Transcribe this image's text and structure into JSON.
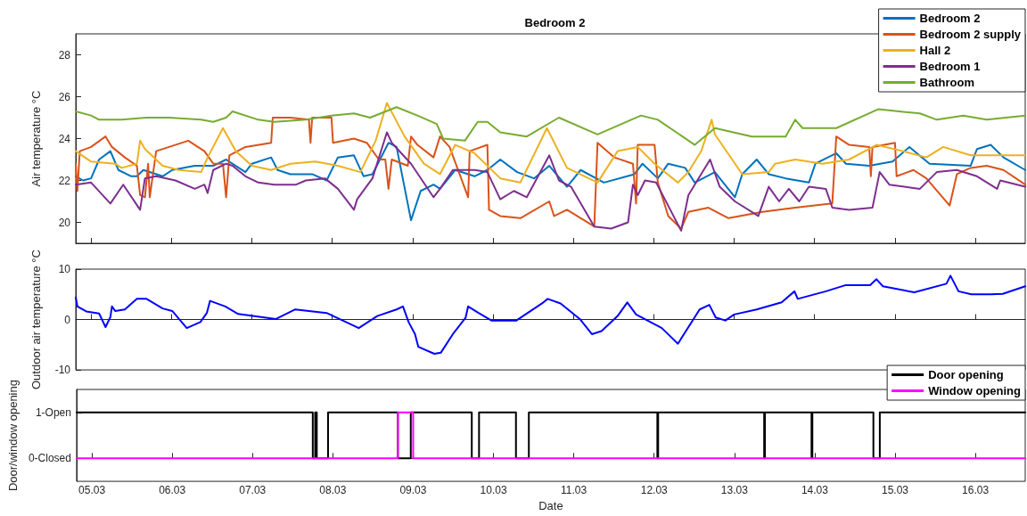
{
  "chart_data": [
    {
      "type": "line",
      "title": "Bedroom 2",
      "ylabel": "Air temperature °C",
      "xlim": [
        "--03-04T19:26",
        "--03-16T14:53"
      ],
      "xticks": [
        {
          "value": "--03-05",
          "label": null
        },
        {
          "value": "--03-06",
          "label": null
        },
        {
          "value": "--03-07",
          "label": null
        },
        {
          "value": "--03-08",
          "label": null
        },
        {
          "value": "--03-09",
          "label": null
        },
        {
          "value": "--03-10",
          "label": null
        },
        {
          "value": "--03-11",
          "label": null
        },
        {
          "value": "--03-12",
          "label": null
        },
        {
          "value": "--03-13",
          "label": null
        },
        {
          "value": "--03-14",
          "label": null
        },
        {
          "value": "--03-15",
          "label": null
        },
        {
          "value": "--03-16",
          "label": null
        }
      ],
      "ylim": [
        19,
        29
      ],
      "yticks": [
        20,
        22,
        24,
        26,
        28
      ],
      "tick_labels": "y",
      "legend": "top right",
      "marker": "none",
      "line_style": "solid",
      "series": [
        {
          "name": "Bedroom 2",
          "color": "#0072bd",
          "x": [
            "--03-04T19:26",
            "--03-04T21:36",
            "--03-05T00:00",
            "--03-05T02:24",
            "--03-05T05:46",
            "--03-05T08:10",
            "--03-05T12:00",
            "--03-05T13:41",
            "--03-05T15:36",
            "--03-05T21:22",
            "--03-06T00:14",
            "--03-06T06:58",
            "--03-06T12:29",
            "--03-06T16:19",
            "--03-06T22:05",
            "--03-07T00:00",
            "--03-07T05:46",
            "--03-07T07:41",
            "--03-07T11:31",
            "--03-07T18:00",
            "--03-07T22:19",
            "--03-08T01:41",
            "--03-08T06:29",
            "--03-08T09:22",
            "--03-08T12:00",
            "--03-08T16:48",
            "--03-08T19:12",
            "--03-08T23:31",
            "--03-09T02:24",
            "--03-09T06:14",
            "--03-09T08:10",
            "--03-09T12:43",
            "--03-09T18:29",
            "--03-09T22:19",
            "--03-10T02:10",
            "--03-10T07:12",
            "--03-10T12:14",
            "--03-10T16:48",
            "--03-10T22:05",
            "--03-11T02:10",
            "--03-11T09:07",
            "--03-11T18:14",
            "--03-11T20:38",
            "--03-12T01:12",
            "--03-12T04:19",
            "--03-12T09:22",
            "--03-12T12:14",
            "--03-12T18:14",
            "--03-13T00:14",
            "--03-13T02:24",
            "--03-13T06:43",
            "--03-13T10:19",
            "--03-13T15:22",
            "--03-13T22:19",
            "--03-14T00:14",
            "--03-14T06:29",
            "--03-14T09:22",
            "--03-14T16:19",
            "--03-14T23:17",
            "--03-15T04:19",
            "--03-15T10:19",
            "--03-15T22:34",
            "--03-16T00:29",
            "--03-16T04:34",
            "--03-16T08:24",
            "--03-16T14:53"
          ],
          "values": [
            22.2,
            22.0,
            22.1,
            23.0,
            23.4,
            22.5,
            22.2,
            22.2,
            22.5,
            22.2,
            22.5,
            22.7,
            22.7,
            23.0,
            22.4,
            22.8,
            23.1,
            22.5,
            22.3,
            22.3,
            22.0,
            23.1,
            23.2,
            22.2,
            22.3,
            23.8,
            23.6,
            20.1,
            21.5,
            21.8,
            21.6,
            22.5,
            22.2,
            22.5,
            23.0,
            22.4,
            22.1,
            22.7,
            21.7,
            22.5,
            21.9,
            22.3,
            22.8,
            22.1,
            22.8,
            22.6,
            21.9,
            22.4,
            21.2,
            22.3,
            23.0,
            22.3,
            22.1,
            21.9,
            22.8,
            23.3,
            22.8,
            22.7,
            22.9,
            23.6,
            22.8,
            22.7,
            23.5,
            23.7,
            23.1,
            22.5
          ]
        },
        {
          "name": "Bedroom 2 supply",
          "color": "#d95319",
          "x": [
            "--03-04T19:26",
            "--03-04T19:55",
            "--03-04T20:38",
            "--03-05T00:00",
            "--03-05T04:19",
            "--03-05T06:14",
            "--03-05T10:05",
            "--03-05T13:41",
            "--03-05T14:38",
            "--03-05T16:05",
            "--03-05T17:02",
            "--03-05T17:31",
            "--03-05T19:26",
            "--03-05T23:17",
            "--03-06T05:02",
            "--03-06T09:50",
            "--03-06T12:29",
            "--03-06T15:22",
            "--03-06T16:19",
            "--03-06T17:17",
            "--03-06T22:05",
            "--03-07T05:46",
            "--03-07T06:14",
            "--03-07T11:31",
            "--03-07T17:02",
            "--03-07T17:31",
            "--03-07T18:00",
            "--03-07T23:46",
            "--03-08T00:14",
            "--03-08T06:29",
            "--03-08T10:19",
            "--03-08T13:55",
            "--03-08T15:50",
            "--03-08T16:48",
            "--03-08T17:46",
            "--03-08T22:34",
            "--03-08T23:31",
            "--03-09T01:26",
            "--03-09T06:14",
            "--03-09T08:10",
            "--03-09T11:02",
            "--03-09T16:34",
            "--03-09T17:02",
            "--03-09T22:19",
            "--03-09T22:48",
            "--03-10T02:10",
            "--03-10T08:10",
            "--03-10T16:48",
            "--03-10T18:14",
            "--03-10T22:05",
            "--03-11T06:14",
            "--03-11T07:12",
            "--03-11T12:14",
            "--03-11T17:46",
            "--03-11T18:43",
            "--03-11T19:12",
            "--03-12T00:14",
            "--03-12T01:12",
            "--03-12T04:19",
            "--03-12T08:10",
            "--03-12T10:19",
            "--03-12T16:19",
            "--03-12T22:19",
            "--03-13T08:24",
            "--03-13T18:14",
            "--03-14T05:17",
            "--03-14T06:29",
            "--03-14T10:19",
            "--03-14T16:19",
            "--03-14T16:48",
            "--03-14T17:17",
            "--03-15T00:00",
            "--03-15T00:29",
            "--03-15T05:31",
            "--03-15T09:22",
            "--03-15T16:19",
            "--03-15T18:29",
            "--03-15T22:34",
            "--03-16T03:22",
            "--03-16T08:24",
            "--03-16T14:53"
          ],
          "values": [
            22.8,
            21.5,
            23.4,
            23.6,
            24.1,
            23.6,
            23.1,
            22.7,
            21.3,
            21.2,
            22.8,
            21.2,
            23.4,
            23.6,
            23.9,
            23.4,
            22.8,
            22.8,
            21.2,
            23.2,
            23.6,
            23.8,
            25.0,
            25.0,
            24.9,
            23.8,
            25.0,
            25.0,
            23.8,
            24.0,
            23.8,
            23.0,
            23.0,
            21.6,
            23.0,
            22.7,
            24.1,
            23.7,
            23.1,
            24.1,
            23.6,
            21.2,
            23.4,
            23.7,
            20.6,
            20.3,
            20.2,
            21.0,
            20.3,
            20.6,
            19.8,
            23.8,
            23.1,
            22.8,
            20.9,
            23.7,
            23.7,
            21.9,
            20.3,
            19.7,
            20.5,
            20.7,
            20.2,
            20.5,
            20.7,
            20.9,
            24.1,
            23.7,
            23.6,
            22.2,
            23.6,
            23.8,
            22.2,
            22.5,
            22.1,
            20.8,
            22.3,
            22.6,
            22.7,
            22.5,
            21.8
          ]
        },
        {
          "name": "Hall 2",
          "color": "#edb120",
          "x": [
            "--03-04T19:26",
            "--03-05T00:00",
            "--03-05T07:12",
            "--03-05T09:07",
            "--03-05T13:41",
            "--03-05T14:38",
            "--03-05T16:05",
            "--03-05T21:22",
            "--03-06T02:10",
            "--03-06T08:53",
            "--03-06T10:48",
            "--03-06T15:22",
            "--03-06T19:12",
            "--03-07T00:00",
            "--03-07T05:46",
            "--03-07T11:31",
            "--03-07T18:58",
            "--03-08T01:41",
            "--03-08T08:24",
            "--03-08T12:58",
            "--03-08T16:19",
            "--03-08T21:36",
            "--03-09T03:22",
            "--03-09T08:10",
            "--03-09T12:43",
            "--03-09T18:29",
            "--03-10T02:10",
            "--03-10T08:10",
            "--03-10T16:05",
            "--03-10T22:05",
            "--03-11T07:12",
            "--03-11T13:12",
            "--03-11T19:12",
            "--03-12T00:14",
            "--03-12T07:12",
            "--03-12T10:19",
            "--03-12T14:10",
            "--03-12T17:17",
            "--03-12T18:14",
            "--03-13T02:24",
            "--03-13T10:19",
            "--03-13T12:14",
            "--03-13T18:14",
            "--03-14T02:24",
            "--03-14T10:19",
            "--03-14T18:29",
            "--03-15T02:24",
            "--03-15T09:22",
            "--03-15T14:24",
            "--03-15T22:34",
            "--03-16T08:24",
            "--03-16T14:53"
          ],
          "values": [
            23.4,
            22.9,
            22.8,
            22.6,
            22.8,
            23.9,
            23.5,
            22.7,
            22.5,
            22.4,
            23.1,
            24.5,
            23.4,
            22.7,
            22.5,
            22.8,
            22.9,
            22.7,
            22.4,
            23.9,
            25.7,
            24.1,
            22.8,
            22.3,
            23.7,
            23.3,
            22.1,
            21.9,
            24.5,
            22.6,
            21.9,
            23.4,
            23.6,
            22.8,
            21.9,
            22.4,
            23.4,
            24.9,
            24.2,
            22.3,
            22.4,
            22.8,
            23.0,
            22.8,
            23.0,
            23.7,
            23.4,
            23.1,
            23.6,
            23.2,
            23.2,
            23.2
          ]
        },
        {
          "name": "Bedroom 1",
          "color": "#7e2f8e",
          "x": [
            "--03-04T19:26",
            "--03-05T00:00",
            "--03-05T05:46",
            "--03-05T09:36",
            "--03-05T14:38",
            "--03-05T16:05",
            "--03-05T19:26",
            "--03-06T01:12",
            "--03-06T06:58",
            "--03-06T09:50",
            "--03-06T10:48",
            "--03-06T12:29",
            "--03-06T16:19",
            "--03-06T18:14",
            "--03-06T22:05",
            "--03-07T01:55",
            "--03-07T06:43",
            "--03-07T13:12",
            "--03-07T16:05",
            "--03-07T21:50",
            "--03-08T01:41",
            "--03-08T06:29",
            "--03-08T07:26",
            "--03-08T12:00",
            "--03-08T16:19",
            "--03-08T17:46",
            "--03-08T23:31",
            "--03-09T06:14",
            "--03-09T08:10",
            "--03-09T12:00",
            "--03-09T18:29",
            "--03-09T22:19",
            "--03-10T02:10",
            "--03-10T06:14",
            "--03-10T10:05",
            "--03-10T16:48",
            "--03-10T19:41",
            "--03-10T23:17",
            "--03-11T06:14",
            "--03-11T11:17",
            "--03-11T16:19",
            "--03-11T17:46",
            "--03-11T19:12",
            "--03-11T21:22",
            "--03-12T00:43",
            "--03-12T08:10",
            "--03-12T10:19",
            "--03-12T16:48",
            "--03-12T19:41",
            "--03-13T00:14",
            "--03-13T07:12",
            "--03-13T10:19",
            "--03-13T13:26",
            "--03-13T16:19",
            "--03-13T19:26",
            "--03-13T22:19",
            "--03-14T03:22",
            "--03-14T05:17",
            "--03-14T10:19",
            "--03-14T17:17",
            "--03-14T19:26",
            "--03-14T22:19",
            "--03-15T07:26",
            "--03-15T12:29",
            "--03-15T18:29",
            "--03-16T00:29",
            "--03-16T06:29",
            "--03-16T07:26",
            "--03-16T14:53"
          ],
          "values": [
            21.8,
            21.9,
            20.9,
            21.8,
            20.6,
            22.1,
            22.2,
            22.0,
            21.6,
            21.8,
            21.4,
            22.5,
            22.8,
            22.7,
            22.2,
            21.9,
            21.8,
            21.8,
            22.0,
            22.1,
            21.6,
            20.6,
            21.1,
            22.1,
            24.3,
            23.8,
            22.8,
            21.2,
            21.6,
            22.5,
            22.5,
            22.4,
            21.1,
            21.5,
            21.2,
            23.2,
            22.0,
            21.7,
            19.8,
            19.7,
            20.0,
            21.8,
            21.3,
            22.0,
            21.9,
            19.6,
            21.3,
            23.0,
            21.7,
            21.0,
            20.3,
            21.7,
            21.0,
            21.6,
            21.0,
            21.7,
            21.6,
            20.7,
            20.6,
            20.7,
            22.4,
            21.8,
            21.6,
            22.4,
            22.5,
            22.2,
            21.6,
            22.0,
            21.7
          ]
        },
        {
          "name": "Bathroom",
          "color": "#77ac30",
          "x": [
            "--03-04T19:26",
            "--03-05T00:00",
            "--03-05T02:24",
            "--03-05T09:07",
            "--03-05T16:34",
            "--03-05T23:17",
            "--03-06T08:53",
            "--03-06T12:29",
            "--03-06T16:19",
            "--03-06T18:14",
            "--03-07T01:55",
            "--03-07T06:43",
            "--03-07T16:05",
            "--03-07T23:46",
            "--03-08T06:29",
            "--03-08T11:17",
            "--03-08T19:12",
            "--03-09T01:26",
            "--03-09T07:12",
            "--03-09T09:07",
            "--03-09T15:36",
            "--03-09T19:26",
            "--03-09T22:19",
            "--03-10T02:10",
            "--03-10T10:05",
            "--03-10T19:41",
            "--03-11T07:12",
            "--03-11T20:10",
            "--03-12T01:12",
            "--03-12T12:14",
            "--03-12T18:14",
            "--03-13T05:17",
            "--03-13T15:22",
            "--03-13T18:14",
            "--03-13T20:24",
            "--03-14T06:29",
            "--03-14T18:58",
            "--03-15T07:26",
            "--03-15T12:29",
            "--03-15T20:24",
            "--03-16T03:22",
            "--03-16T14:53"
          ],
          "values": [
            25.3,
            25.1,
            24.9,
            24.9,
            25.0,
            25.0,
            24.9,
            24.8,
            25.0,
            25.3,
            24.9,
            24.8,
            24.9,
            25.1,
            25.2,
            25.0,
            25.5,
            25.1,
            24.7,
            24.0,
            23.9,
            24.8,
            24.8,
            24.3,
            24.1,
            25.0,
            24.2,
            25.1,
            24.9,
            23.7,
            24.5,
            24.1,
            24.1,
            24.9,
            24.5,
            24.5,
            25.4,
            25.2,
            24.9,
            25.1,
            24.9,
            25.1
          ]
        }
      ]
    },
    {
      "type": "line",
      "ylabel": "Outdoor air temperature °C",
      "xlim": [
        "--03-04T19:26",
        "--03-16T14:53"
      ],
      "xticks": [
        {
          "value": "--03-05",
          "label": null
        },
        {
          "value": "--03-06",
          "label": null
        },
        {
          "value": "--03-07",
          "label": null
        },
        {
          "value": "--03-08",
          "label": null
        },
        {
          "value": "--03-09",
          "label": null
        },
        {
          "value": "--03-10",
          "label": null
        },
        {
          "value": "--03-11",
          "label": null
        },
        {
          "value": "--03-12",
          "label": null
        },
        {
          "value": "--03-13",
          "label": null
        },
        {
          "value": "--03-14",
          "label": null
        },
        {
          "value": "--03-15",
          "label": null
        },
        {
          "value": "--03-16",
          "label": null
        }
      ],
      "ylim": [
        -10,
        10
      ],
      "yticks": [
        -10,
        0,
        10
      ],
      "tick_labels": "y",
      "marker": "none",
      "line_style": "solid",
      "series": [
        {
          "color": "#0000ff",
          "x": [
            "--03-04T19:26",
            "--03-04T19:55",
            "--03-04T22:34",
            "--03-05T02:24",
            "--03-05T04:19",
            "--03-05T05:46",
            "--03-05T06:14",
            "--03-05T07:12",
            "--03-05T10:05",
            "--03-05T13:41",
            "--03-05T16:34",
            "--03-05T21:22",
            "--03-06T00:14",
            "--03-06T04:34",
            "--03-06T08:38",
            "--03-06T10:34",
            "--03-06T11:31",
            "--03-06T16:05",
            "--03-06T19:55",
            "--03-07T07:12",
            "--03-07T12:58",
            "--03-07T22:19",
            "--03-08T07:55",
            "--03-08T13:26",
            "--03-08T19:12",
            "--03-08T21:07",
            "--03-08T22:48",
            "--03-09T00:43",
            "--03-09T01:41",
            "--03-09T06:29",
            "--03-09T08:24",
            "--03-09T12:00",
            "--03-09T15:50",
            "--03-09T16:34",
            "--03-09T19:41",
            "--03-09T23:31",
            "--03-10T06:58",
            "--03-10T14:38",
            "--03-10T16:19",
            "--03-10T20:10",
            "--03-11T01:55",
            "--03-11T05:31",
            "--03-11T08:24",
            "--03-11T13:12",
            "--03-11T16:05",
            "--03-11T18:43",
            "--03-12T02:24",
            "--03-12T07:12",
            "--03-12T13:41",
            "--03-12T16:34",
            "--03-12T18:29",
            "--03-12T21:22",
            "--03-13T00:00",
            "--03-13T06:43",
            "--03-13T14:10",
            "--03-13T18:00",
            "--03-13T18:58",
            "--03-14T03:22",
            "--03-14T09:07",
            "--03-14T16:34",
            "--03-14T18:29",
            "--03-14T20:24",
            "--03-15T05:46",
            "--03-15T15:22",
            "--03-15T16:34",
            "--03-15T18:58",
            "--03-15T22:48",
            "--03-16T04:34",
            "--03-16T08:10",
            "--03-16T14:53"
          ],
          "values": [
            4.4,
            2.6,
            1.6,
            1.2,
            -1.5,
            0.5,
            2.6,
            1.7,
            2.0,
            4.1,
            4.1,
            2.2,
            1.7,
            -1.7,
            -0.5,
            1.3,
            3.7,
            2.6,
            1.1,
            0.1,
            2.0,
            1.3,
            -1.7,
            0.7,
            2.0,
            2.6,
            -0.5,
            -2.9,
            -5.4,
            -6.8,
            -6.6,
            -2.9,
            0.4,
            2.6,
            1.3,
            -0.2,
            -0.2,
            3.2,
            4.1,
            3.2,
            0.1,
            -2.9,
            -2.3,
            0.7,
            3.4,
            1.0,
            -1.7,
            -4.8,
            2.0,
            2.9,
            0.4,
            -0.2,
            1.0,
            2.0,
            3.4,
            5.6,
            4.1,
            5.6,
            6.8,
            6.8,
            8.0,
            6.6,
            5.4,
            7.1,
            8.7,
            5.6,
            5.0,
            5.0,
            5.1,
            6.6
          ]
        }
      ]
    },
    {
      "type": "step",
      "ylabel": "Door/window opening",
      "xlabel": "Date",
      "xlim": [
        "--03-04T19:26",
        "--03-16T14:53"
      ],
      "xticks": [
        {
          "value": "--03-05",
          "label": "05.03"
        },
        {
          "value": "--03-06",
          "label": "06.03"
        },
        {
          "value": "--03-07",
          "label": "07.03"
        },
        {
          "value": "--03-08",
          "label": "08.03"
        },
        {
          "value": "--03-09",
          "label": "09.03"
        },
        {
          "value": "--03-10",
          "label": "10.03"
        },
        {
          "value": "--03-11",
          "label": "11.03"
        },
        {
          "value": "--03-12",
          "label": "12.03"
        },
        {
          "value": "--03-13",
          "label": "13.03"
        },
        {
          "value": "--03-14",
          "label": "14.03"
        },
        {
          "value": "--03-15",
          "label": "15.03"
        },
        {
          "value": "--03-16",
          "label": "16.03"
        }
      ],
      "ylim": [
        -0.5,
        1.5
      ],
      "yticks": [
        {
          "value": 0,
          "label": "0-Closed"
        },
        {
          "value": 1,
          "label": "1-Open"
        }
      ],
      "legend": "top right",
      "marker": "none",
      "line_style": "solid",
      "series": [
        {
          "name": "Door opening",
          "color": "#000000",
          "x": [
            "--03-04T19:26",
            "--03-07T18:00",
            "--03-07T18:43",
            "--03-07T19:12",
            "--03-07T22:34",
            "--03-08T19:26",
            "--03-08T23:17",
            "--03-09T17:31",
            "--03-09T19:41",
            "--03-10T06:43",
            "--03-10T10:34",
            "--03-12T00:58",
            "--03-12T01:12",
            "--03-13T08:53",
            "--03-13T09:07",
            "--03-13T23:02",
            "--03-13T23:17",
            "--03-14T17:31",
            "--03-14T19:26",
            "--03-16T14:53"
          ],
          "values": [
            1,
            0,
            1,
            0,
            1,
            0,
            1,
            0,
            1,
            0,
            1,
            0,
            1,
            0,
            1,
            0,
            1,
            0,
            1,
            1
          ]
        },
        {
          "name": "Window opening",
          "color": "#ff00ff",
          "x": [
            "--03-04T19:26",
            "--03-08T19:26",
            "--03-09T00:00",
            "--03-16T14:53"
          ],
          "values": [
            0,
            1,
            0,
            0
          ]
        }
      ]
    }
  ]
}
